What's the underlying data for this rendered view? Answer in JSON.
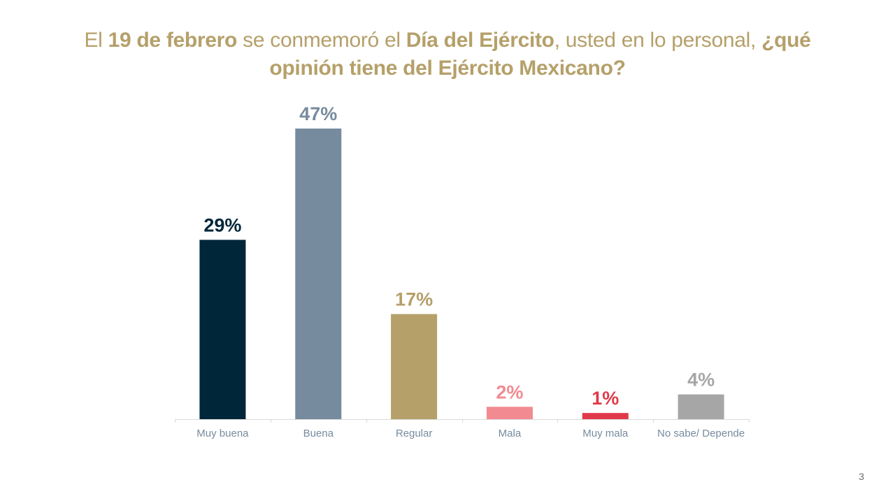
{
  "title": {
    "parts": [
      {
        "text": "El ",
        "bold": false
      },
      {
        "text": "19 de febrero",
        "bold": true
      },
      {
        "text": " se conmemoró el ",
        "bold": false
      },
      {
        "text": "Día del Ejército",
        "bold": true
      },
      {
        "text": ", usted en lo personal, ",
        "bold": false
      },
      {
        "text": "¿qué opinión tiene del Ejército Mexicano?",
        "bold": true
      }
    ]
  },
  "chart_data": {
    "type": "bar",
    "categories": [
      "Muy buena",
      "Buena",
      "Regular",
      "Mala",
      "Muy mala",
      "No sabe/ Depende"
    ],
    "values": [
      29,
      47,
      17,
      2,
      1,
      4
    ],
    "value_labels": [
      "29%",
      "47%",
      "17%",
      "2%",
      "1%",
      "4%"
    ],
    "colors": [
      "#002639",
      "#778b9e",
      "#b5a06a",
      "#f28b91",
      "#e03a4a",
      "#a6a6a6"
    ],
    "label_color": "#778b9e",
    "ylim": [
      0,
      47
    ],
    "grid": false,
    "legend": "none"
  },
  "page_number": "3"
}
